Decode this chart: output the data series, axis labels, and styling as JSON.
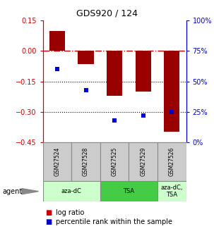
{
  "title": "GDS920 / 124",
  "categories": [
    "GSM27524",
    "GSM27528",
    "GSM27525",
    "GSM27529",
    "GSM27526"
  ],
  "bar_values": [
    0.1,
    -0.065,
    -0.22,
    -0.2,
    -0.4
  ],
  "percentile_values": [
    60,
    43,
    18,
    22,
    25
  ],
  "bar_color": "#990000",
  "dot_color": "#0000cc",
  "ylim_left": [
    -0.45,
    0.15
  ],
  "ylim_right": [
    0,
    100
  ],
  "yticks_left": [
    0.15,
    0,
    -0.15,
    -0.3,
    -0.45
  ],
  "yticks_right": [
    100,
    75,
    50,
    25,
    0
  ],
  "hlines": [
    0.0,
    -0.15,
    -0.3
  ],
  "hline_styles": [
    "dashdot",
    "dotted",
    "dotted"
  ],
  "hline_colors": [
    "#cc0000",
    "#000000",
    "#000000"
  ],
  "agent_groups": [
    {
      "label": "aza-dC",
      "color": "#ccffcc",
      "start": 0,
      "end": 2
    },
    {
      "label": "TSA",
      "color": "#44cc44",
      "start": 2,
      "end": 4
    },
    {
      "label": "aza-dC,\nTSA",
      "color": "#ccffcc",
      "start": 4,
      "end": 5
    }
  ],
  "legend_labels": [
    "log ratio",
    "percentile rank within the sample"
  ],
  "legend_colors": [
    "#cc0000",
    "#0000cc"
  ],
  "bar_width": 0.55,
  "agent_label": "agent",
  "background_color": "#ffffff",
  "plot_bg": "#ffffff",
  "left_axis_color": "#cc0000",
  "right_axis_color": "#0000cc",
  "sample_box_color": "#cccccc",
  "sample_box_edge": "#888888"
}
